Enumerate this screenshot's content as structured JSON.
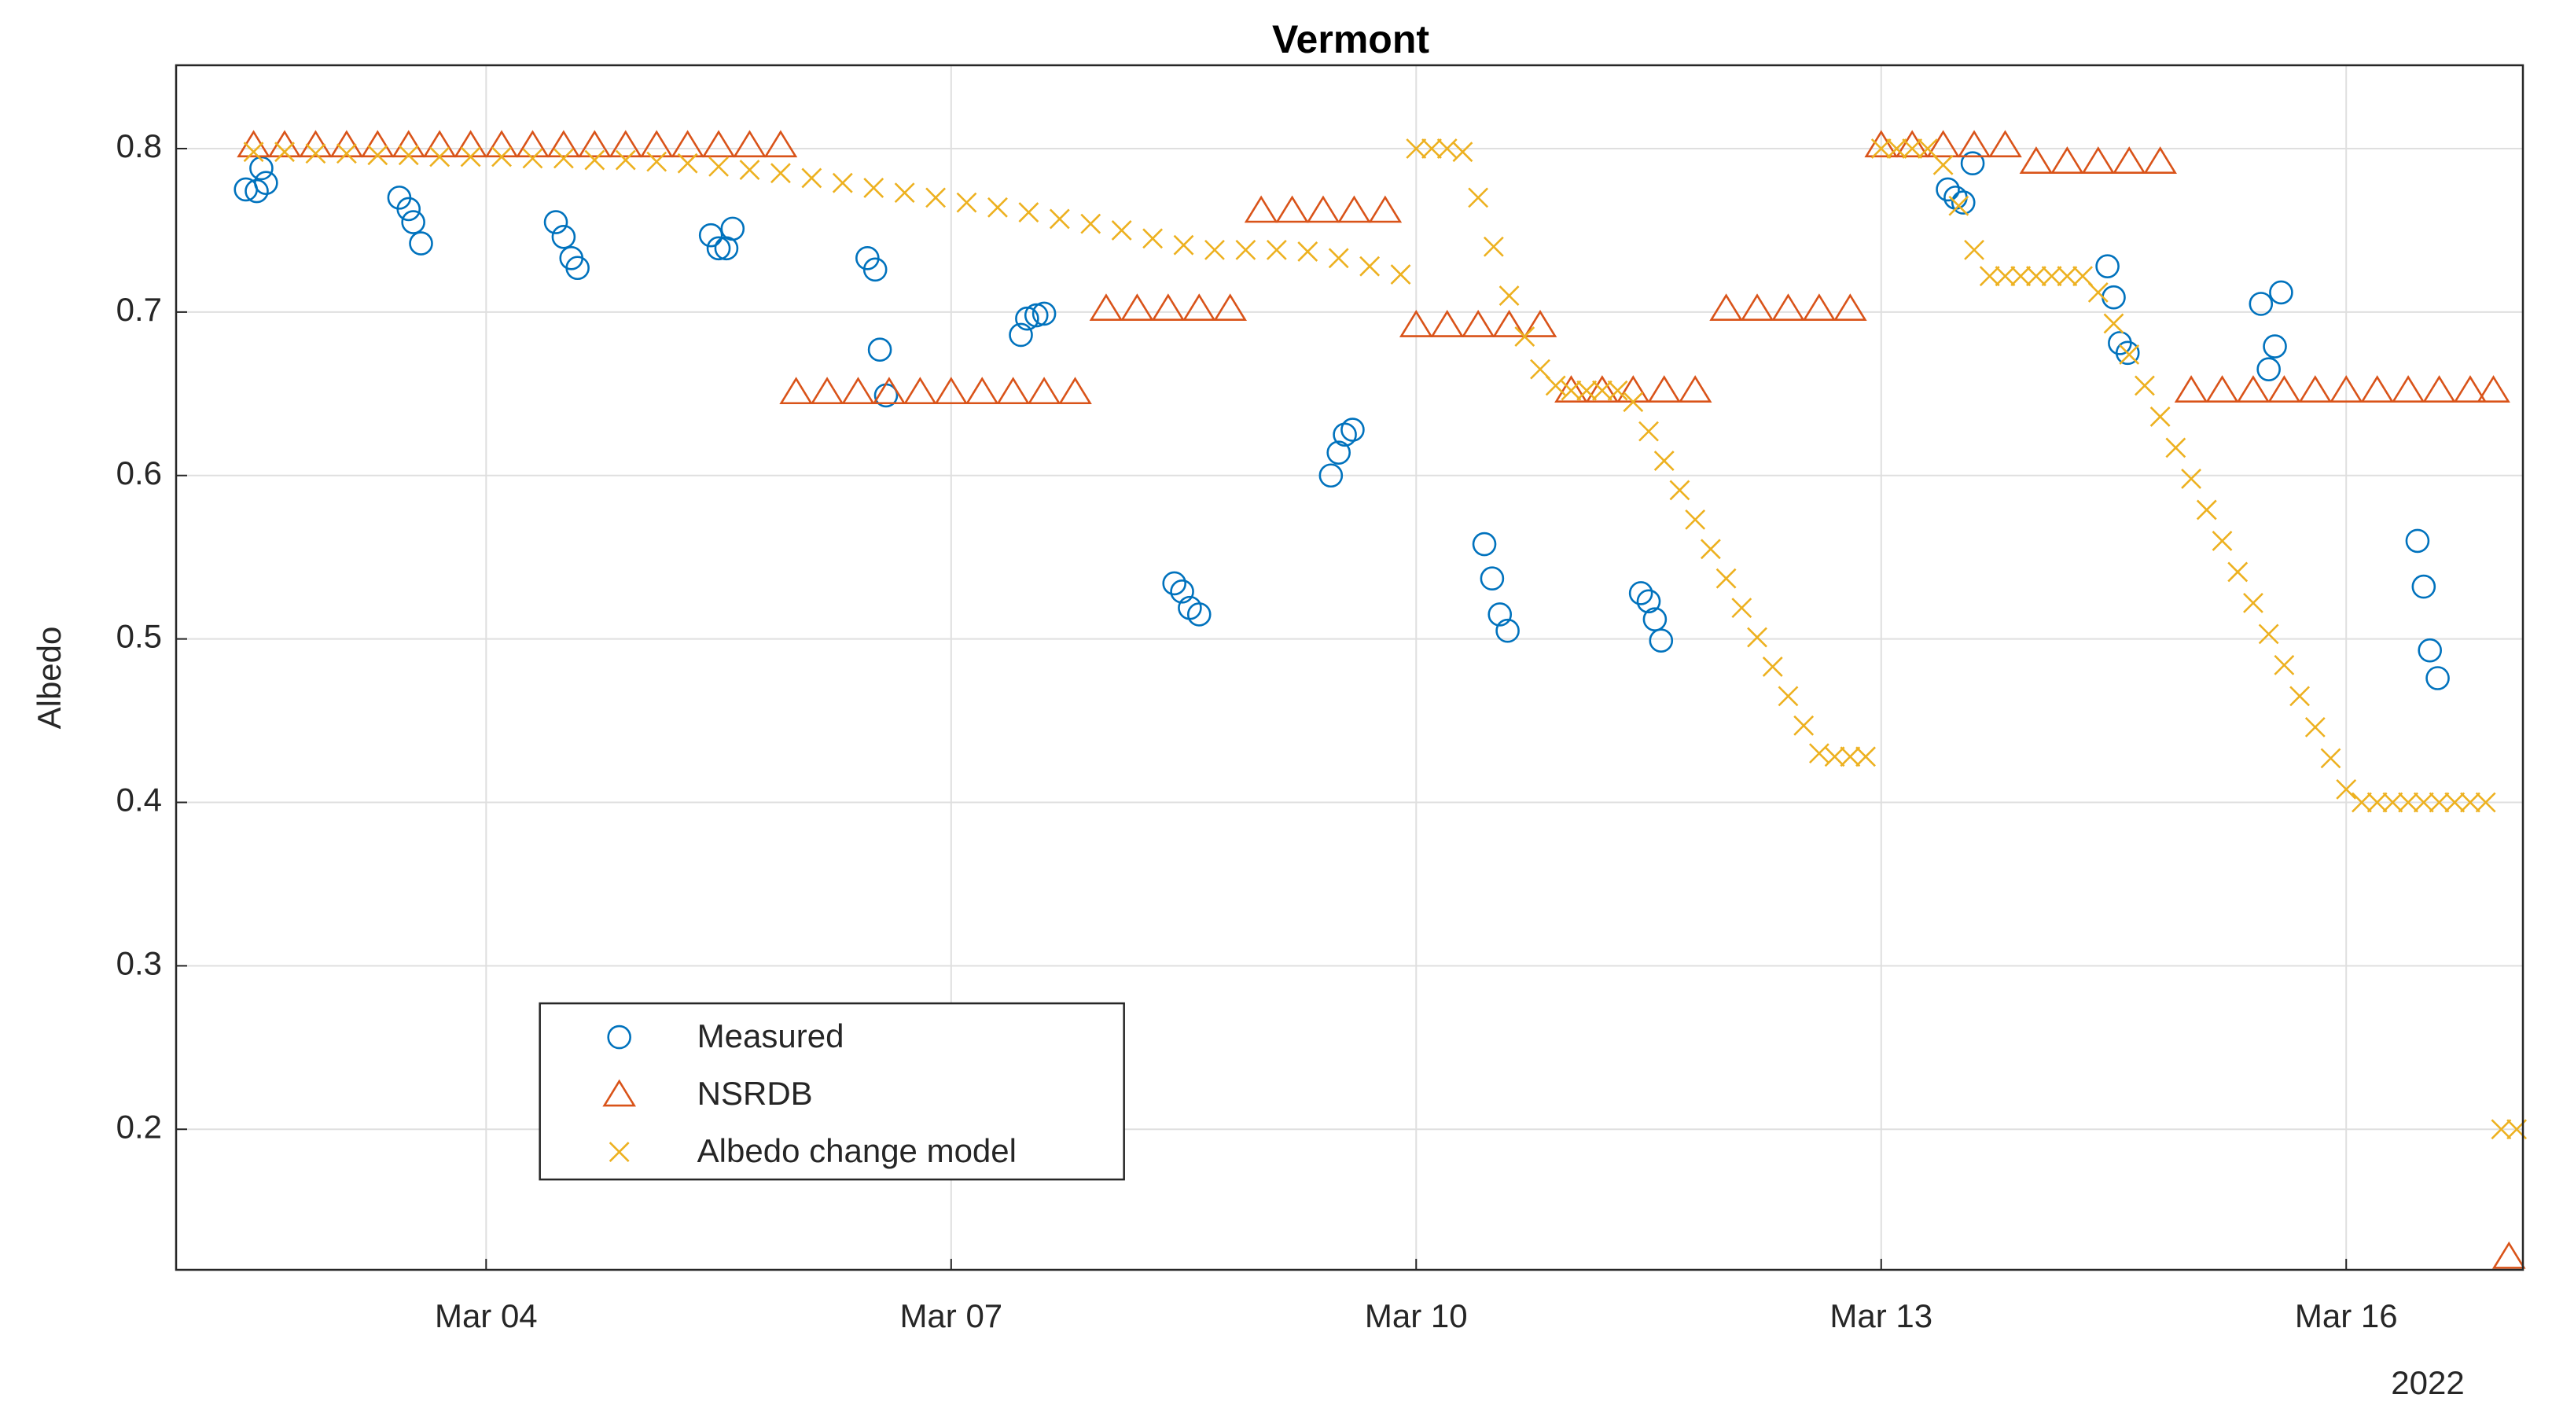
{
  "chart_data": {
    "type": "scatter",
    "title": "Vermont",
    "ylabel": "Albedo",
    "x_secondary_label": "2022",
    "xlim": [
      2,
      17.14
    ],
    "ylim": [
      0.114,
      0.851
    ],
    "xticks": [
      {
        "value": 4,
        "label": "Mar 04"
      },
      {
        "value": 7,
        "label": "Mar 07"
      },
      {
        "value": 10,
        "label": "Mar 10"
      },
      {
        "value": 13,
        "label": "Mar 13"
      },
      {
        "value": 16,
        "label": "Mar 16"
      }
    ],
    "yticks": [
      0.2,
      0.3,
      0.4,
      0.5,
      0.6,
      0.7,
      0.8
    ],
    "grid": true,
    "legend": "lower left",
    "series": [
      {
        "name": "Measured",
        "color": "#0072BD",
        "marker": "circle",
        "x": [
          2.45,
          2.52,
          2.58,
          2.55,
          3.44,
          3.5,
          3.53,
          3.58,
          4.45,
          4.5,
          4.55,
          4.59,
          5.45,
          5.5,
          5.55,
          5.59,
          6.46,
          6.51,
          6.54,
          6.58,
          7.45,
          7.49,
          7.55,
          7.6,
          8.44,
          8.49,
          8.54,
          8.6,
          9.45,
          9.5,
          9.54,
          9.59,
          10.44,
          10.49,
          10.54,
          10.59,
          11.45,
          11.5,
          11.54,
          11.58,
          13.43,
          13.48,
          13.53,
          13.59,
          14.46,
          14.5,
          14.54,
          14.59,
          15.45,
          15.5,
          15.54,
          15.58,
          16.46,
          16.5,
          16.54,
          16.59
        ],
        "values": [
          0.775,
          0.774,
          0.779,
          0.788,
          0.77,
          0.763,
          0.755,
          0.742,
          0.755,
          0.746,
          0.733,
          0.727,
          0.747,
          0.739,
          0.739,
          0.751,
          0.733,
          0.726,
          0.677,
          0.649,
          0.686,
          0.696,
          0.698,
          0.699,
          0.534,
          0.529,
          0.519,
          0.515,
          0.6,
          0.614,
          0.625,
          0.628,
          0.558,
          0.537,
          0.515,
          0.505,
          0.528,
          0.523,
          0.512,
          0.499,
          0.775,
          0.77,
          0.767,
          0.791,
          0.728,
          0.709,
          0.681,
          0.675,
          0.705,
          0.665,
          0.679,
          0.712,
          0.56,
          0.532,
          0.493,
          0.476
        ]
      },
      {
        "name": "NSRDB",
        "color": "#D95319",
        "marker": "triangle",
        "x": [
          2.5,
          2.7,
          2.9,
          3.1,
          3.3,
          3.5,
          3.7,
          3.9,
          4.1,
          4.3,
          4.5,
          4.7,
          4.9,
          5.1,
          5.3,
          5.5,
          5.7,
          5.9,
          6.0,
          6.2,
          6.4,
          6.6,
          6.8,
          7.0,
          7.2,
          7.4,
          7.6,
          7.8,
          8.0,
          8.2,
          8.4,
          8.6,
          8.8,
          9.0,
          9.2,
          9.4,
          9.6,
          9.8,
          10.0,
          10.2,
          10.4,
          10.6,
          10.8,
          11.0,
          11.2,
          11.4,
          11.6,
          11.8,
          12.0,
          12.2,
          12.4,
          12.6,
          12.8,
          13.0,
          13.2,
          13.4,
          13.6,
          13.8,
          14.0,
          14.2,
          14.4,
          14.6,
          14.8,
          15.0,
          15.2,
          15.4,
          15.6,
          15.8,
          16.0,
          16.2,
          16.4,
          16.6,
          16.8,
          16.95,
          17.05
        ],
        "values": [
          0.802,
          0.802,
          0.802,
          0.802,
          0.802,
          0.802,
          0.802,
          0.802,
          0.802,
          0.802,
          0.802,
          0.802,
          0.802,
          0.802,
          0.802,
          0.802,
          0.802,
          0.802,
          0.651,
          0.651,
          0.651,
          0.651,
          0.651,
          0.651,
          0.651,
          0.651,
          0.651,
          0.651,
          0.702,
          0.702,
          0.702,
          0.702,
          0.702,
          0.762,
          0.762,
          0.762,
          0.762,
          0.762,
          0.692,
          0.692,
          0.692,
          0.692,
          0.692,
          0.652,
          0.652,
          0.652,
          0.652,
          0.652,
          0.702,
          0.702,
          0.702,
          0.702,
          0.702,
          0.802,
          0.802,
          0.802,
          0.802,
          0.802,
          0.792,
          0.792,
          0.792,
          0.792,
          0.792,
          0.652,
          0.652,
          0.652,
          0.652,
          0.652,
          0.652,
          0.652,
          0.652,
          0.652,
          0.652,
          0.652,
          0.122
        ]
      },
      {
        "name": "Albedo change model",
        "color": "#EDB120",
        "marker": "x",
        "x": [
          2.5,
          2.7,
          2.9,
          3.1,
          3.3,
          3.5,
          3.7,
          3.9,
          4.1,
          4.3,
          4.5,
          4.7,
          4.9,
          5.1,
          5.3,
          5.5,
          5.7,
          5.9,
          6.1,
          6.3,
          6.5,
          6.7,
          6.9,
          7.1,
          7.3,
          7.5,
          7.7,
          7.9,
          8.1,
          8.3,
          8.5,
          8.7,
          8.9,
          9.1,
          9.3,
          9.5,
          9.7,
          9.9,
          10.0,
          10.1,
          10.2,
          10.3,
          10.4,
          10.5,
          10.6,
          10.7,
          10.8,
          10.9,
          11.0,
          11.1,
          11.2,
          11.3,
          11.4,
          11.5,
          11.6,
          11.7,
          11.8,
          11.9,
          12.0,
          12.1,
          12.2,
          12.3,
          12.4,
          12.5,
          12.6,
          12.7,
          12.8,
          12.9,
          13.0,
          13.1,
          13.2,
          13.3,
          13.4,
          13.5,
          13.6,
          13.7,
          13.8,
          13.9,
          14.0,
          14.1,
          14.2,
          14.3,
          14.4,
          14.5,
          14.6,
          14.7,
          14.8,
          14.9,
          15.0,
          15.1,
          15.2,
          15.3,
          15.4,
          15.5,
          15.6,
          15.7,
          15.8,
          15.9,
          16.0,
          16.1,
          16.2,
          16.3,
          16.4,
          16.5,
          16.6,
          16.7,
          16.8,
          16.9,
          17.0,
          17.1
        ],
        "values": [
          0.798,
          0.798,
          0.797,
          0.797,
          0.796,
          0.796,
          0.795,
          0.795,
          0.795,
          0.794,
          0.794,
          0.793,
          0.793,
          0.792,
          0.791,
          0.789,
          0.787,
          0.785,
          0.782,
          0.779,
          0.776,
          0.773,
          0.77,
          0.767,
          0.764,
          0.761,
          0.757,
          0.754,
          0.75,
          0.745,
          0.741,
          0.738,
          0.738,
          0.738,
          0.737,
          0.733,
          0.728,
          0.723,
          0.8,
          0.8,
          0.8,
          0.798,
          0.77,
          0.74,
          0.71,
          0.685,
          0.665,
          0.655,
          0.652,
          0.652,
          0.652,
          0.652,
          0.645,
          0.627,
          0.609,
          0.591,
          0.573,
          0.555,
          0.537,
          0.519,
          0.501,
          0.483,
          0.465,
          0.447,
          0.43,
          0.428,
          0.428,
          0.428,
          0.8,
          0.8,
          0.8,
          0.8,
          0.79,
          0.765,
          0.738,
          0.722,
          0.722,
          0.722,
          0.722,
          0.722,
          0.722,
          0.722,
          0.712,
          0.693,
          0.674,
          0.655,
          0.636,
          0.617,
          0.598,
          0.579,
          0.56,
          0.541,
          0.522,
          0.503,
          0.484,
          0.465,
          0.446,
          0.427,
          0.408,
          0.4,
          0.4,
          0.4,
          0.4,
          0.4,
          0.4,
          0.4,
          0.4,
          0.4,
          0.2,
          0.2
        ]
      }
    ]
  }
}
